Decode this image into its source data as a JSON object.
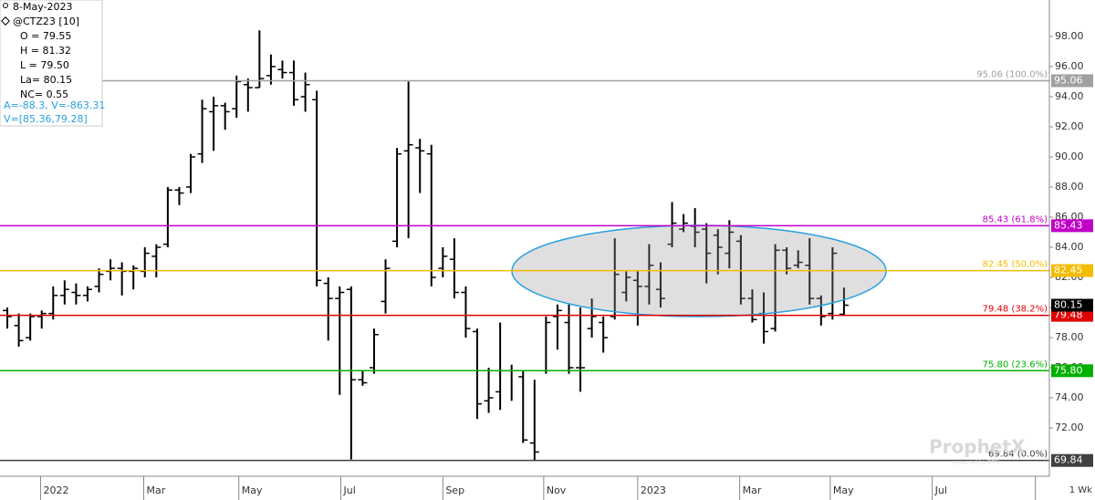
{
  "info": {
    "date": "8-May-2023",
    "symbol": "@CTZ23 [10]",
    "lines": [
      "O = 79.55",
      "H = 81.32",
      "L = 79.50",
      "La= 80.15",
      "NC= 0.55"
    ],
    "blue_lines": [
      "A=-88.3, V=-863.31",
      "V=[85.36,79.28]"
    ]
  },
  "timeframe": "1 Wk",
  "watermark": {
    "brand": "ProphetX",
    "sub": "powered by DTN"
  },
  "chart_data": {
    "type": "ohlc",
    "color": "#000000",
    "open": [
      79.8,
      78.8,
      78.0,
      79.4,
      79.6,
      80.8,
      81.0,
      80.8,
      81.4,
      82.4,
      82.6,
      82.4,
      82.4,
      83.4,
      84.2,
      87.8,
      88.0,
      90.2,
      93.0,
      93.4,
      93.2,
      94.8,
      94.6,
      95.4,
      95.8,
      95.6,
      94.0,
      93.8,
      81.6,
      80.6,
      81.2,
      75.2,
      76.0,
      80.4,
      84.4,
      90.4,
      90.6,
      90.2,
      82.6,
      83.2,
      81.0,
      78.4,
      73.8,
      74.4,
      75.8,
      75.4,
      71.0,
      75.8,
      79.4,
      79.0,
      76.0,
      78.6,
      79.0,
      79.4,
      81.0,
      81.8,
      81.4,
      81.2,
      84.2,
      85.2,
      85.4,
      85.2,
      84.8,
      83.6,
      84.4,
      80.6,
      79.6,
      78.6,
      83.8,
      82.8,
      82.8,
      80.6,
      79.6,
      79.55
    ],
    "high": [
      80.0,
      79.6,
      79.6,
      79.8,
      81.4,
      81.8,
      81.6,
      81.4,
      82.6,
      83.2,
      83.0,
      82.8,
      84.0,
      84.2,
      88.0,
      88.0,
      90.2,
      93.8,
      94.0,
      93.6,
      95.4,
      95.2,
      98.4,
      96.8,
      96.4,
      96.4,
      95.6,
      94.4,
      82.0,
      81.4,
      81.4,
      75.8,
      78.6,
      83.2,
      90.6,
      95.0,
      91.2,
      90.8,
      84.0,
      84.6,
      81.4,
      78.6,
      76.0,
      79.0,
      76.2,
      75.8,
      75.2,
      79.4,
      80.2,
      80.2,
      80.0,
      80.6,
      79.4,
      84.6,
      82.4,
      82.4,
      84.2,
      83.0,
      87.0,
      86.2,
      86.6,
      85.6,
      85.2,
      85.8,
      84.8,
      81.2,
      81.0,
      84.2,
      84.0,
      83.8,
      84.6,
      80.8,
      84.0,
      81.32
    ],
    "low": [
      78.6,
      77.4,
      77.8,
      78.6,
      79.2,
      80.2,
      80.2,
      80.4,
      81.0,
      81.8,
      80.8,
      81.2,
      82.0,
      82.0,
      84.0,
      86.8,
      87.6,
      89.6,
      90.4,
      91.8,
      92.6,
      93.0,
      94.6,
      94.8,
      95.2,
      93.4,
      93.0,
      81.4,
      77.8,
      74.2,
      69.9,
      74.8,
      75.6,
      79.6,
      84.0,
      84.6,
      87.6,
      81.4,
      82.0,
      80.6,
      78.0,
      72.6,
      73.0,
      73.2,
      73.8,
      71.0,
      69.8,
      75.6,
      77.2,
      75.6,
      74.4,
      78.0,
      77.0,
      79.2,
      80.4,
      78.8,
      80.2,
      80.0,
      84.0,
      85.0,
      84.0,
      81.6,
      82.2,
      82.6,
      80.2,
      79.0,
      77.6,
      78.4,
      82.2,
      82.6,
      80.2,
      78.8,
      79.2,
      79.5
    ],
    "close": [
      79.4,
      77.8,
      79.4,
      79.6,
      80.8,
      81.2,
      80.8,
      81.2,
      82.2,
      82.6,
      82.4,
      82.6,
      83.6,
      84.0,
      87.8,
      87.6,
      90.0,
      93.2,
      93.4,
      93.0,
      95.0,
      94.6,
      95.2,
      96.0,
      95.6,
      93.8,
      94.8,
      81.8,
      80.6,
      81.0,
      75.2,
      75.0,
      78.2,
      82.6,
      90.2,
      90.8,
      90.4,
      82.0,
      83.4,
      81.0,
      78.6,
      73.6,
      74.0,
      75.8,
      75.8,
      71.2,
      70.4,
      79.0,
      79.8,
      76.0,
      76.0,
      79.4,
      78.0,
      82.2,
      82.0,
      81.4,
      82.8,
      80.6,
      85.6,
      85.6,
      85.0,
      83.6,
      84.0,
      85.0,
      80.6,
      79.2,
      78.4,
      83.8,
      82.6,
      83.0,
      80.6,
      79.4,
      83.6,
      80.15
    ],
    "levels": [
      {
        "value": 95.06,
        "label": "95.06 (100.0%)",
        "tag": "95.06",
        "color": "#a0a0a0"
      },
      {
        "value": 85.43,
        "label": "85.43 (61.8%)",
        "tag": "85.43",
        "color": "#c000c8"
      },
      {
        "value": 82.45,
        "label": "82.45 (50.0%)",
        "tag": "82.45",
        "color": "#f5bc00"
      },
      {
        "value": 79.48,
        "label": "79.48 (38.2%)",
        "tag": "79.48",
        "color": "#e00000"
      },
      {
        "value": 75.8,
        "label": "75.80 (23.6%)",
        "tag": "75.80",
        "color": "#00b000"
      },
      {
        "value": 69.84,
        "label": "69.84 (0.0%)",
        "tag": "69.84",
        "color": "#404040"
      }
    ],
    "ylim": [
      68.79,
      100.42
    ],
    "yticks": [
      {
        "value": 72,
        "label": "72.00"
      },
      {
        "value": 74,
        "label": "74.00"
      },
      {
        "value": 76,
        "label": "76.00"
      },
      {
        "value": 78,
        "label": "78.00"
      },
      {
        "value": 80,
        "label": "80.00"
      },
      {
        "value": 82,
        "label": "82.00"
      },
      {
        "value": 84,
        "label": "84.00"
      },
      {
        "value": 86,
        "label": "86.00"
      },
      {
        "value": 88,
        "label": "88.00"
      },
      {
        "value": 90,
        "label": "90.00"
      },
      {
        "value": 92,
        "label": "92.00"
      },
      {
        "value": 94,
        "label": "94.00"
      },
      {
        "value": 96,
        "label": "96.00"
      },
      {
        "value": 98,
        "label": "98.00"
      }
    ],
    "xlim": [
      -0.64,
      90.92
    ],
    "xticks": [
      {
        "value": 2.9,
        "label": "2022"
      },
      {
        "value": 11.9,
        "label": "Mar"
      },
      {
        "value": 20.2,
        "label": "May"
      },
      {
        "value": 29.1,
        "label": "Jul"
      },
      {
        "value": 38.0,
        "label": "Sep"
      },
      {
        "value": 46.8,
        "label": "Nov"
      },
      {
        "value": 55.0,
        "label": "2023"
      },
      {
        "value": 63.9,
        "label": "Mar"
      },
      {
        "value": 71.8,
        "label": "May"
      },
      {
        "value": 80.7,
        "label": "Jul"
      },
      {
        "value": 89.7,
        "label": ""
      }
    ]
  }
}
